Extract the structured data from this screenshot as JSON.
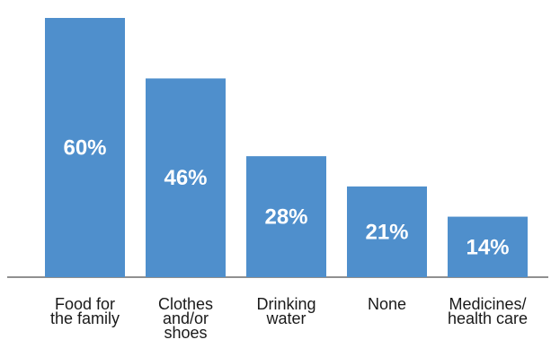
{
  "chart_data": {
    "type": "bar",
    "categories": [
      [
        "Food for",
        "the family"
      ],
      [
        "Clothes",
        "and/or",
        "shoes"
      ],
      [
        "Drinking",
        "water"
      ],
      [
        "None"
      ],
      [
        "Medicines/",
        "health care"
      ]
    ],
    "values": [
      60,
      46,
      28,
      21,
      14
    ],
    "value_labels": [
      "60%",
      "46%",
      "28%",
      "21%",
      "14%"
    ],
    "ylim": [
      0,
      60
    ],
    "grid": false,
    "bar_color": "#4f8fcc",
    "label_color": "#ffffff"
  }
}
